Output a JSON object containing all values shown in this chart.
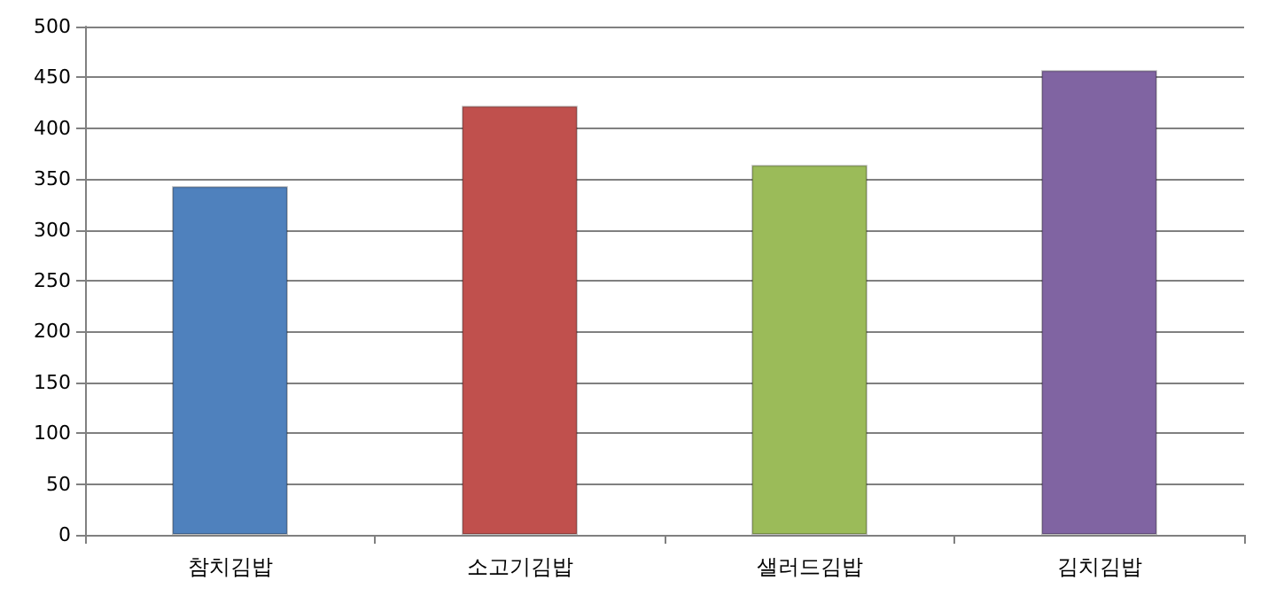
{
  "chart_data": {
    "type": "bar",
    "categories": [
      "참치김밥",
      "소고기김밥",
      "샐러드김밥",
      "김치김밥"
    ],
    "values": [
      343,
      422,
      364,
      457
    ],
    "colors": [
      "#4f81bd",
      "#c0504d",
      "#9bbb59",
      "#8064a2"
    ],
    "ylim": [
      0,
      500
    ],
    "yticks": [
      0,
      50,
      100,
      150,
      200,
      250,
      300,
      350,
      400,
      450,
      500
    ],
    "grid": "y"
  }
}
